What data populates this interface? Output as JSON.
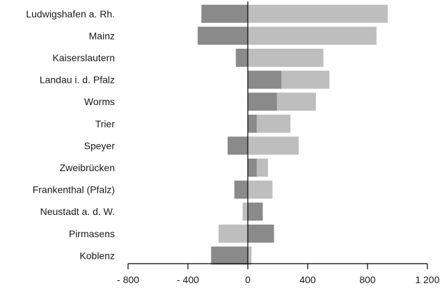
{
  "chart_data": {
    "type": "bar",
    "orientation": "horizontal",
    "stacked": true,
    "categories": [
      "Ludwigshafen a. Rh.",
      "Mainz",
      "Kaiserslautern",
      "Landau i. d. Pfalz",
      "Worms",
      "Trier",
      "Speyer",
      "Zweibrücken",
      "Frankenthal (Pfalz)",
      "Neustadt a. d. W.",
      "Pirmasens",
      "Koblenz"
    ],
    "series": [
      {
        "color": "#8a8a8a",
        "values": [
          -310,
          -335,
          -80,
          225,
          195,
          60,
          -135,
          60,
          -90,
          100,
          175,
          -245
        ]
      },
      {
        "color": "#bebebe",
        "values": [
          935,
          860,
          505,
          320,
          260,
          225,
          340,
          75,
          165,
          -35,
          -195,
          25
        ]
      }
    ],
    "xlim": [
      -800,
      1200
    ],
    "xticks": [
      -800,
      -400,
      0,
      400,
      800,
      1200
    ],
    "xtick_labels": [
      "- 800",
      "- 400",
      "0",
      "400",
      "800",
      "1 200"
    ],
    "grid": false,
    "legend": "none"
  }
}
